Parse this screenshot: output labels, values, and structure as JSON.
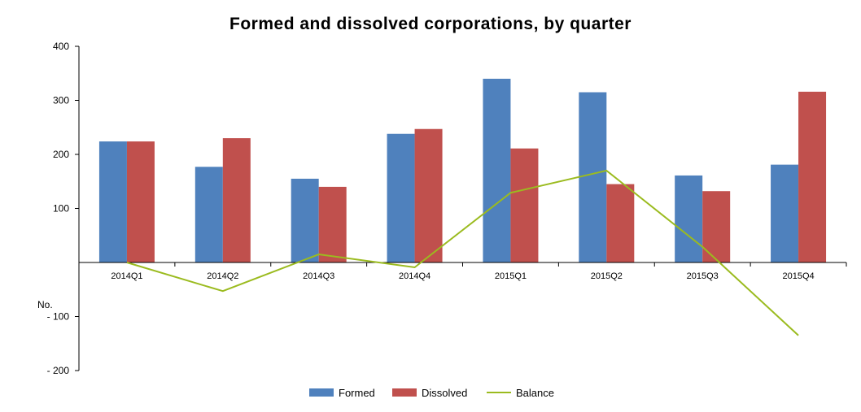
{
  "chart_data": {
    "type": "bar",
    "title": "Formed and dissolved corporations, by quarter",
    "ylabel": "No.",
    "xlabel": "",
    "ylim": [
      -200,
      400
    ],
    "yticks": [
      400,
      300,
      200,
      100,
      -100,
      -200
    ],
    "ytick_labels": [
      "400",
      "300",
      "200",
      "100",
      "- 100",
      "- 200"
    ],
    "categories": [
      "2014Q1",
      "2014Q2",
      "2014Q3",
      "2014Q4",
      "2015Q1",
      "2015Q2",
      "2015Q3",
      "2015Q4"
    ],
    "series": [
      {
        "name": "Formed",
        "type": "bar",
        "color": "#4F81BD",
        "values": [
          224,
          177,
          155,
          238,
          340,
          315,
          161,
          181
        ]
      },
      {
        "name": "Dissolved",
        "type": "bar",
        "color": "#C0504D",
        "values": [
          224,
          230,
          140,
          247,
          211,
          145,
          132,
          316
        ]
      },
      {
        "name": "Balance",
        "type": "line",
        "color": "#9BBB1F",
        "values": [
          0,
          -53,
          15,
          -9,
          129,
          170,
          29,
          -135
        ]
      }
    ],
    "legend_position": "bottom",
    "grid": false
  }
}
